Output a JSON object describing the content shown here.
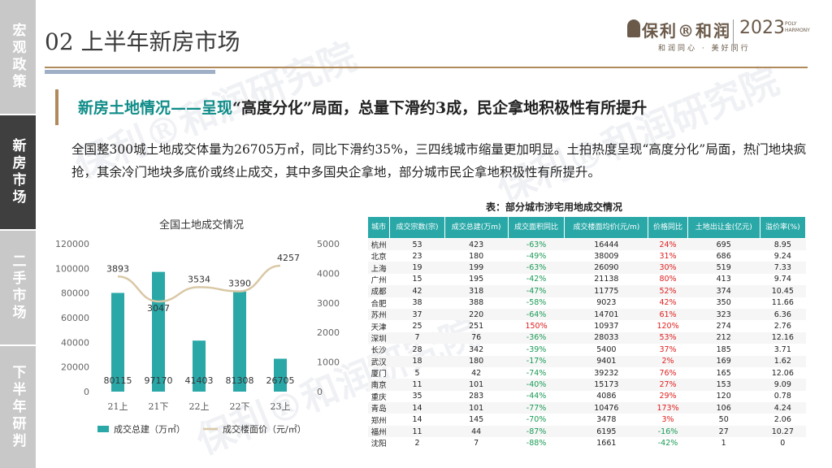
{
  "sidebar": {
    "items": [
      {
        "label": "宏观政策",
        "active": false
      },
      {
        "label": "新房市场",
        "active": true
      },
      {
        "label": "二手市场",
        "active": false
      },
      {
        "label": "下半年研判",
        "active": false
      }
    ]
  },
  "header": {
    "title": "02 上半年新房市场",
    "logo_brand": "保利®和润",
    "logo_brand_sub": "和润同心 · 美好同行",
    "logo_year": "2023",
    "logo_eng": "POLY HARMONY"
  },
  "watermark": "保利®和润研究院",
  "subtitle": {
    "prefix": "新房土地情况——呈现",
    "middle": "“高度分化”局面，总量下滑约3成，民企拿地积极性有所提升"
  },
  "body_text": "全国整300城土地成交体量为26705万㎡，同比下滑约35%，三四线城市缩量更加明显。土拍热度呈现“高度分化”局面，热门地块疯抢，其余冷门地块多底价或终止成交，其中多国央企拿地，部分城市民企拿地积极性有所提升。",
  "chart_data": {
    "type": "bar+line",
    "title": "全国土地成交情况",
    "categories": [
      "21上",
      "21下",
      "22上",
      "22下",
      "23上"
    ],
    "series": [
      {
        "name": "成交总建（万㎡）",
        "type": "bar",
        "axis": "left",
        "color": "#2aa8a8",
        "values": [
          80115,
          97170,
          41403,
          81308,
          26705
        ]
      },
      {
        "name": "成交楼面价（元/㎡）",
        "type": "line",
        "axis": "right",
        "color": "#d9c8a6",
        "values": [
          3893,
          3047,
          3534,
          3390,
          4257
        ]
      }
    ],
    "y_left": {
      "min": 0,
      "max": 120000,
      "ticks": [
        0,
        20000,
        40000,
        60000,
        80000,
        100000,
        120000
      ]
    },
    "y_right": {
      "min": 0,
      "max": 5000,
      "ticks": [
        0,
        1000,
        2000,
        3000,
        4000,
        5000
      ]
    },
    "legend_position": "bottom"
  },
  "table": {
    "title": "表：部分城市涉宅用地成交情况",
    "headers": [
      "城市",
      "成交宗数(宗)",
      "成交总建(万m)",
      "成交面积同比",
      "成交楼面均价(元/m)",
      "价格同比",
      "土地出让金(亿元)",
      "溢价率(%)"
    ],
    "rows": [
      [
        "杭州",
        "53",
        "423",
        "-63%",
        "16444",
        "24%",
        "695",
        "8.95"
      ],
      [
        "北京",
        "23",
        "180",
        "-49%",
        "38009",
        "31%",
        "686",
        "9.24"
      ],
      [
        "上海",
        "19",
        "199",
        "-63%",
        "26090",
        "30%",
        "519",
        "7.33"
      ],
      [
        "广州",
        "15",
        "195",
        "-42%",
        "21138",
        "80%",
        "413",
        "9.74"
      ],
      [
        "成都",
        "42",
        "318",
        "-47%",
        "11775",
        "52%",
        "374",
        "10.45"
      ],
      [
        "合肥",
        "38",
        "388",
        "-58%",
        "9023",
        "42%",
        "350",
        "11.66"
      ],
      [
        "苏州",
        "37",
        "220",
        "-64%",
        "14701",
        "61%",
        "323",
        "6.36"
      ],
      [
        "天津",
        "25",
        "251",
        "150%",
        "10937",
        "120%",
        "274",
        "2.76"
      ],
      [
        "深圳",
        "7",
        "76",
        "-36%",
        "28033",
        "53%",
        "212",
        "12.16"
      ],
      [
        "长沙",
        "28",
        "342",
        "-39%",
        "5400",
        "37%",
        "185",
        "3.71"
      ],
      [
        "武汉",
        "18",
        "180",
        "-17%",
        "9401",
        "2%",
        "169",
        "1.62"
      ],
      [
        "厦门",
        "5",
        "42",
        "-74%",
        "39232",
        "76%",
        "165",
        "12.06"
      ],
      [
        "南京",
        "11",
        "101",
        "-40%",
        "15173",
        "27%",
        "153",
        "9.09"
      ],
      [
        "重庆",
        "35",
        "283",
        "-44%",
        "4086",
        "29%",
        "120",
        "0.78"
      ],
      [
        "青岛",
        "14",
        "101",
        "-77%",
        "10476",
        "173%",
        "106",
        "4.24"
      ],
      [
        "郑州",
        "14",
        "145",
        "-70%",
        "3478",
        "3%",
        "50",
        "2.06"
      ],
      [
        "福州",
        "11",
        "44",
        "-87%",
        "6195",
        "-16%",
        "27",
        "10.27"
      ],
      [
        "沈阳",
        "2",
        "7",
        "-88%",
        "1661",
        "-42%",
        "1",
        "0"
      ]
    ]
  },
  "colors": {
    "accent": "#2aa8a8",
    "gold": "#b08a5a",
    "positive": "#e02020",
    "negative": "#1a9a55"
  }
}
